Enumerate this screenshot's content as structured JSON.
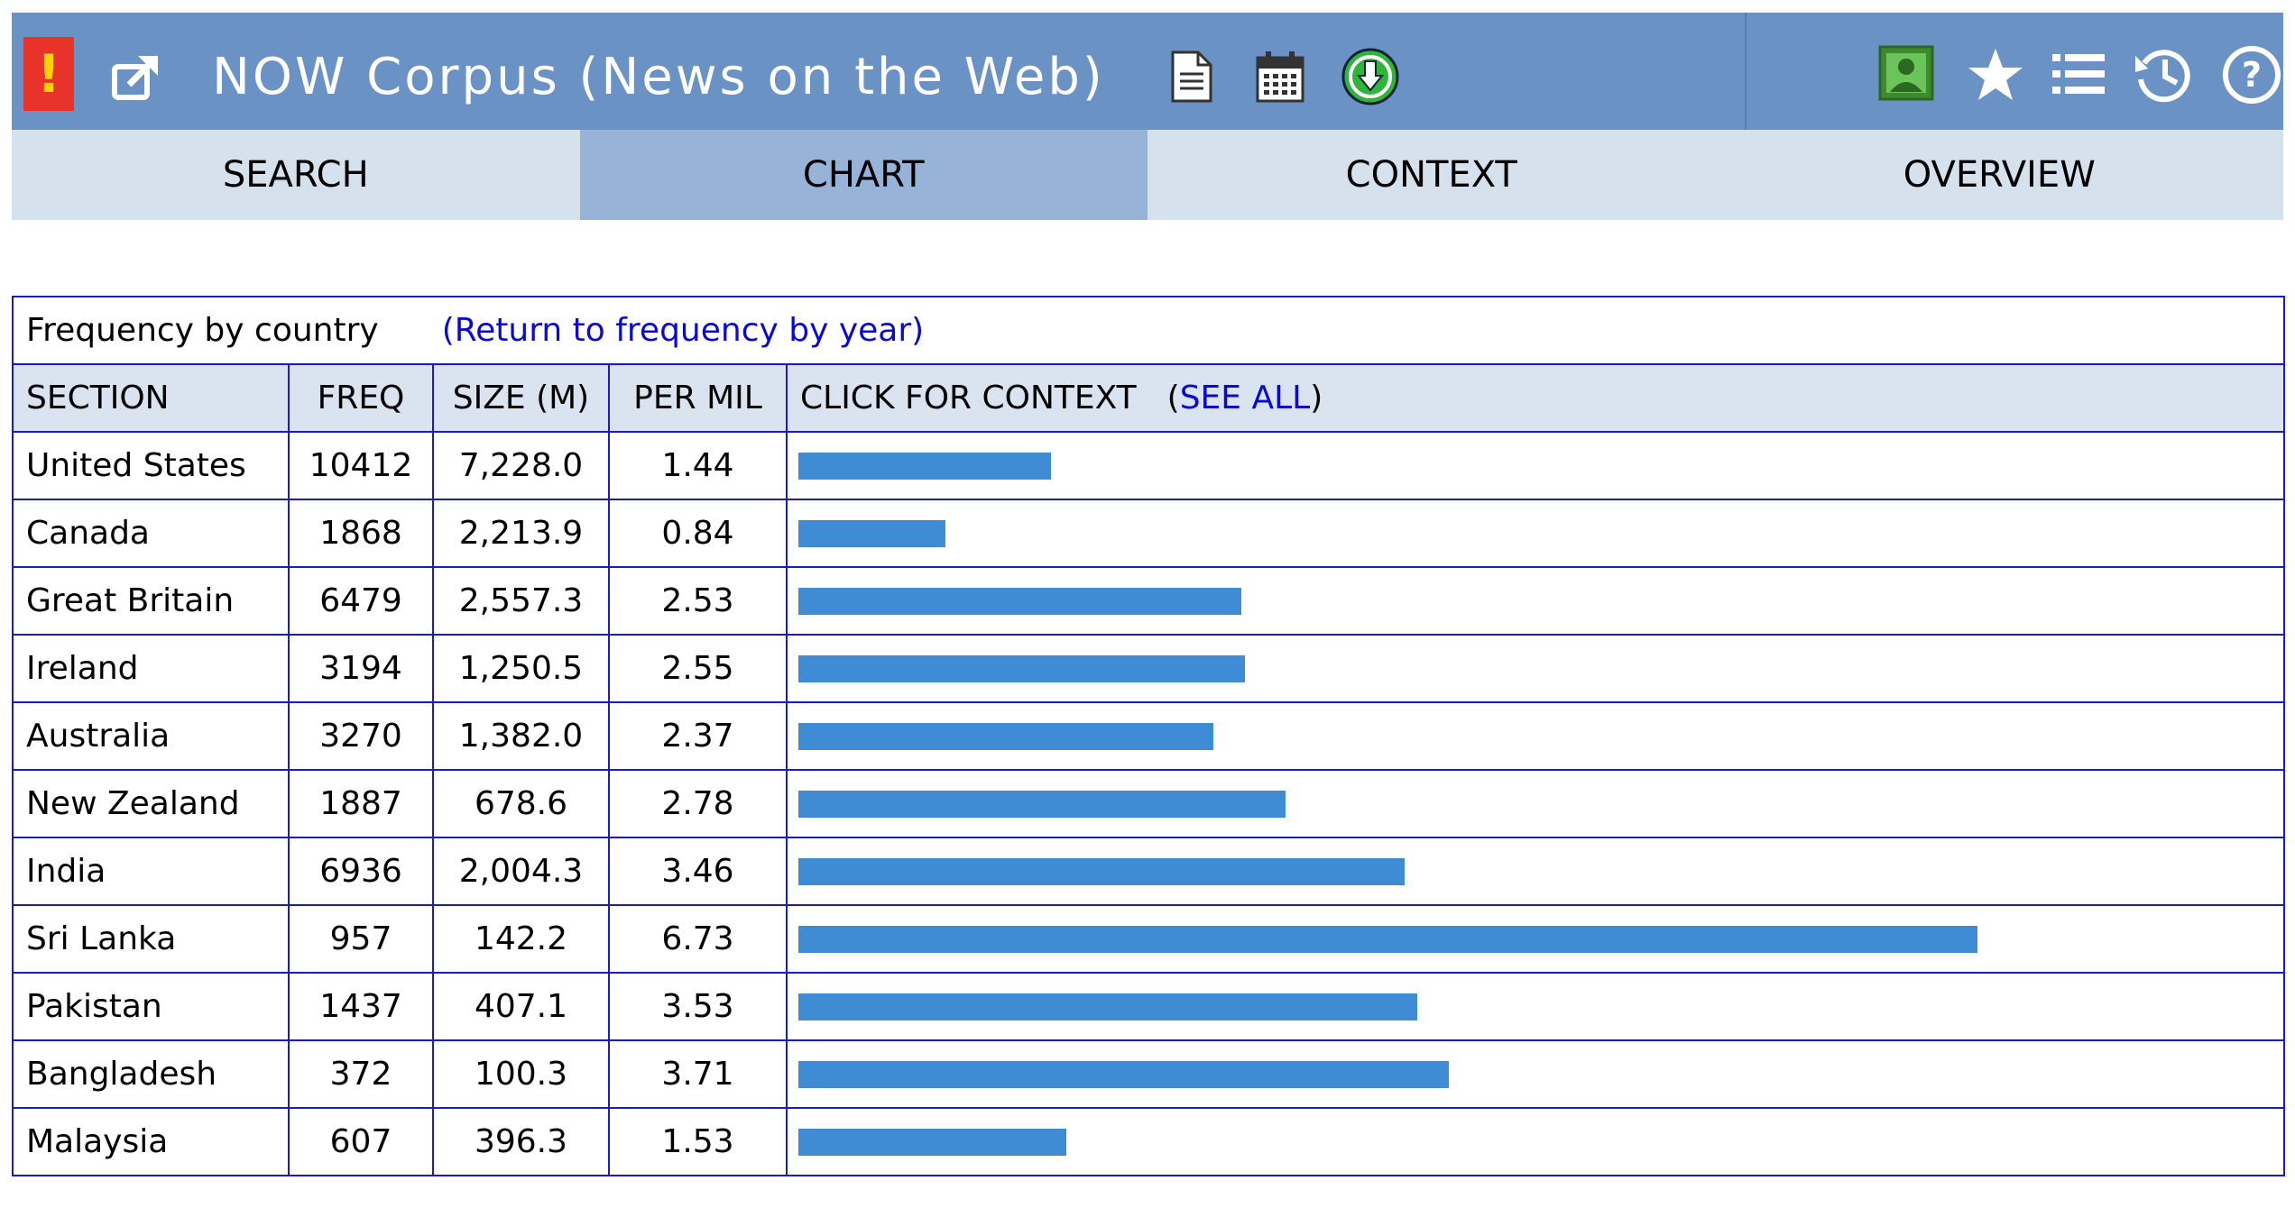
{
  "header": {
    "title": "NOW Corpus (News on the Web)",
    "alert_glyph": "!",
    "icons": {
      "left": [
        "alert-icon",
        "external-link-icon"
      ],
      "after_title": [
        "document-icon",
        "calendar-icon",
        "download-icon"
      ],
      "right": [
        "user-profile-icon",
        "star-icon",
        "list-icon",
        "history-icon",
        "help-icon"
      ]
    },
    "colors": {
      "bar_bg": "#6a92c4",
      "alert_bg": "#e8332a",
      "download_green": "#2fb53a",
      "profile_green": "#4c9a3c"
    }
  },
  "tabs": [
    {
      "label": "SEARCH",
      "active": false
    },
    {
      "label": "CHART",
      "active": true
    },
    {
      "label": "CONTEXT",
      "active": false
    },
    {
      "label": "OVERVIEW",
      "active": false
    }
  ],
  "table": {
    "caption": "Frequency by country",
    "return_link": "(Return to frequency by year)",
    "headers": {
      "section": "SECTION",
      "freq": "FREQ",
      "size": "SIZE (M)",
      "per_mil": "PER MIL",
      "context": "CLICK FOR CONTEXT",
      "see_all_open": "(",
      "see_all": "SEE ALL",
      "see_all_close": ")"
    },
    "bar_color": "#3f8cd5",
    "rows": [
      {
        "section": "United States",
        "freq": "10412",
        "size": "7,228.0",
        "per_mil": "1.44"
      },
      {
        "section": "Canada",
        "freq": "1868",
        "size": "2,213.9",
        "per_mil": "0.84"
      },
      {
        "section": "Great Britain",
        "freq": "6479",
        "size": "2,557.3",
        "per_mil": "2.53"
      },
      {
        "section": "Ireland",
        "freq": "3194",
        "size": "1,250.5",
        "per_mil": "2.55"
      },
      {
        "section": "Australia",
        "freq": "3270",
        "size": "1,382.0",
        "per_mil": "2.37"
      },
      {
        "section": "New Zealand",
        "freq": "1887",
        "size": "678.6",
        "per_mil": "2.78"
      },
      {
        "section": "India",
        "freq": "6936",
        "size": "2,004.3",
        "per_mil": "3.46"
      },
      {
        "section": "Sri Lanka",
        "freq": "957",
        "size": "142.2",
        "per_mil": "6.73"
      },
      {
        "section": "Pakistan",
        "freq": "1437",
        "size": "407.1",
        "per_mil": "3.53"
      },
      {
        "section": "Bangladesh",
        "freq": "372",
        "size": "100.3",
        "per_mil": "3.71"
      },
      {
        "section": "Malaysia",
        "freq": "607",
        "size": "396.3",
        "per_mil": "1.53"
      }
    ]
  }
}
